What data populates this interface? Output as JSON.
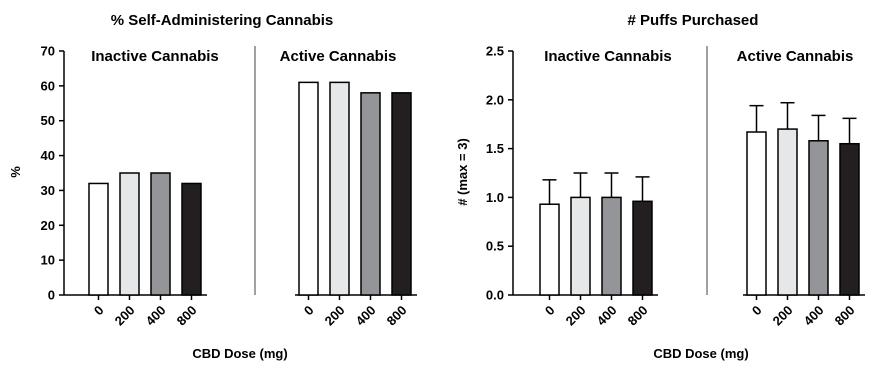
{
  "chart_data": [
    {
      "type": "bar",
      "title": "% Self-Administering Cannabis",
      "xlabel": "CBD Dose (mg)",
      "ylabel": "%",
      "ylim": [
        0,
        70
      ],
      "yticks": [
        "0",
        "10",
        "20",
        "30",
        "40",
        "50",
        "60",
        "70"
      ],
      "groups": [
        {
          "label": "Inactive Cannabis",
          "categories": [
            "0",
            "200",
            "400",
            "800"
          ],
          "values": [
            32,
            35,
            35,
            32
          ]
        },
        {
          "label": "Active Cannabis",
          "categories": [
            "0",
            "200",
            "400",
            "800"
          ],
          "values": [
            61,
            61,
            58,
            58
          ]
        }
      ],
      "colors": [
        "#ffffff",
        "#e6e7e8",
        "#939598",
        "#231f20"
      ],
      "grid": false
    },
    {
      "type": "bar",
      "title": "# Puffs Purchased",
      "xlabel": "CBD Dose (mg)",
      "ylabel": "# (max = 3)",
      "ylim": [
        0,
        2.5
      ],
      "yticks": [
        "0.0",
        "0.5",
        "1.0",
        "1.5",
        "2.0",
        "2.5"
      ],
      "groups": [
        {
          "label": "Inactive Cannabis",
          "categories": [
            "0",
            "200",
            "400",
            "800"
          ],
          "values": [
            0.93,
            1.0,
            1.0,
            0.96
          ],
          "errors": [
            0.25,
            0.25,
            0.25,
            0.25
          ]
        },
        {
          "label": "Active Cannabis",
          "categories": [
            "0",
            "200",
            "400",
            "800"
          ],
          "values": [
            1.67,
            1.7,
            1.58,
            1.55
          ],
          "errors": [
            0.27,
            0.27,
            0.26,
            0.26
          ]
        }
      ],
      "colors": [
        "#ffffff",
        "#e6e7e8",
        "#939598",
        "#231f20"
      ],
      "grid": false
    }
  ]
}
